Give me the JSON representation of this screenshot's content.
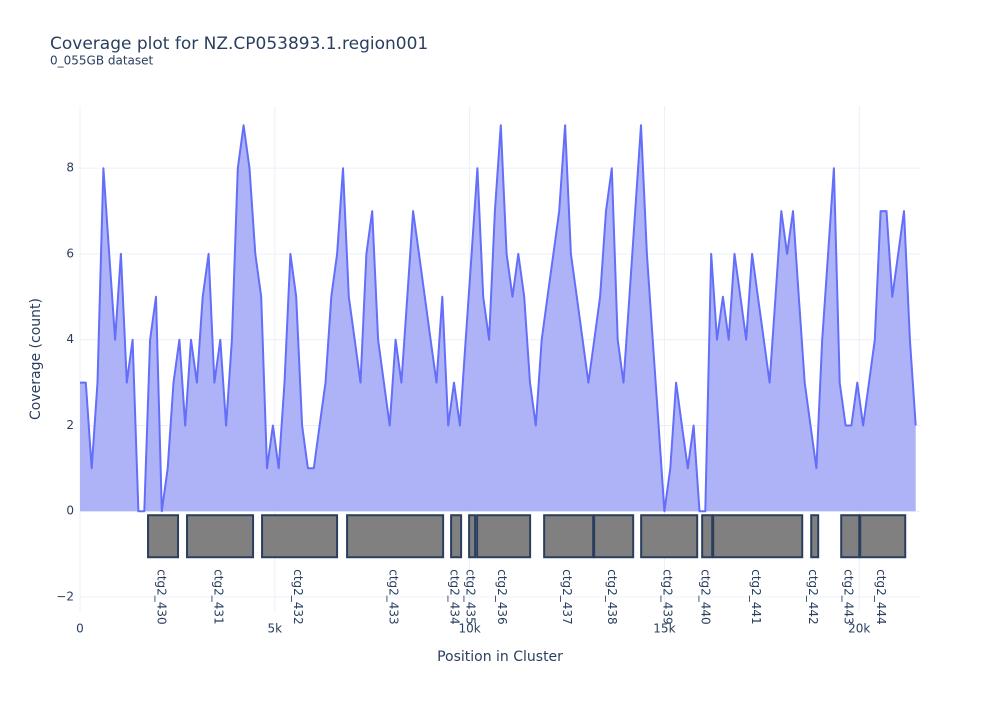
{
  "chart_data": {
    "type": "area",
    "title": "Coverage plot for NZ.CP053893.1.region001",
    "subtitle": "0_055GB dataset",
    "x_label": "Position in Cluster",
    "y_label": "Coverage (count)",
    "x": [
      0,
      150,
      300,
      450,
      600,
      750,
      900,
      1050,
      1200,
      1350,
      1500,
      1650,
      1800,
      1950,
      2100,
      2250,
      2400,
      2550,
      2700,
      2850,
      3000,
      3150,
      3300,
      3450,
      3600,
      3750,
      3900,
      4050,
      4200,
      4350,
      4500,
      4650,
      4800,
      4950,
      5100,
      5250,
      5400,
      5550,
      5700,
      5850,
      6000,
      6150,
      6300,
      6450,
      6600,
      6750,
      6900,
      7050,
      7200,
      7350,
      7500,
      7650,
      7800,
      7950,
      8100,
      8250,
      8400,
      8550,
      8700,
      8850,
      9000,
      9150,
      9300,
      9450,
      9600,
      9750,
      9900,
      10050,
      10200,
      10350,
      10500,
      10650,
      10800,
      10950,
      11100,
      11250,
      11400,
      11550,
      11700,
      11850,
      12000,
      12150,
      12300,
      12450,
      12600,
      12750,
      12900,
      13050,
      13200,
      13350,
      13500,
      13650,
      13800,
      13950,
      14100,
      14250,
      14400,
      14550,
      14700,
      14850,
      15000,
      15150,
      15300,
      15450,
      15600,
      15750,
      15900,
      16050,
      16200,
      16350,
      16500,
      16650,
      16800,
      16950,
      17100,
      17250,
      17400,
      17550,
      17700,
      17850,
      18000,
      18150,
      18300,
      18450,
      18600,
      18750,
      18900,
      19050,
      19200,
      19350,
      19500,
      19650,
      19800,
      19950,
      20100,
      20250,
      20400,
      20550,
      20700,
      20850,
      21000,
      21150,
      21300,
      21450
    ],
    "series": [
      {
        "name": "Coverage",
        "color": "#636efa",
        "fill": "#aeb3f8",
        "values": [
          3,
          3,
          1,
          3,
          8,
          6,
          4,
          6,
          3,
          4,
          0,
          0,
          4,
          5,
          0,
          1,
          3,
          4,
          2,
          4,
          3,
          5,
          6,
          3,
          4,
          2,
          4,
          8,
          9,
          8,
          6,
          5,
          1,
          2,
          1,
          3,
          6,
          5,
          2,
          1,
          1,
          2,
          3,
          5,
          6,
          8,
          5,
          4,
          3,
          6,
          7,
          4,
          3,
          2,
          4,
          3,
          5,
          7,
          6,
          5,
          4,
          3,
          5,
          2,
          3,
          2,
          4,
          6,
          8,
          5,
          4,
          7,
          9,
          6,
          5,
          6,
          5,
          3,
          2,
          4,
          5,
          6,
          7,
          9,
          6,
          5,
          4,
          3,
          4,
          5,
          7,
          8,
          4,
          3,
          5,
          7,
          9,
          6,
          4,
          2,
          0,
          1,
          3,
          2,
          1,
          2,
          0,
          0,
          6,
          4,
          5,
          4,
          6,
          5,
          4,
          6,
          5,
          4,
          3,
          5,
          7,
          6,
          7,
          5,
          3,
          2,
          1,
          4,
          6,
          8,
          3,
          2,
          2,
          3,
          2,
          3,
          4,
          7,
          7,
          5,
          6,
          7,
          4,
          2
        ]
      }
    ],
    "genes": [
      {
        "name": "ctg2_430",
        "start": 1746,
        "end": 2516
      },
      {
        "name": "ctg2_431",
        "start": 2747,
        "end": 4442
      },
      {
        "name": "ctg2_432",
        "start": 4673,
        "end": 6598
      },
      {
        "name": "ctg2_433",
        "start": 6855,
        "end": 9320
      },
      {
        "name": "ctg2_434",
        "start": 9525,
        "end": 9782
      },
      {
        "name": "ctg2_435",
        "start": 9987,
        "end": 10141
      },
      {
        "name": "ctg2_436",
        "start": 10192,
        "end": 11553
      },
      {
        "name": "ctg2_437",
        "start": 11913,
        "end": 13171
      },
      {
        "name": "ctg2_438",
        "start": 13197,
        "end": 14198
      },
      {
        "name": "ctg2_439",
        "start": 14403,
        "end": 15841
      },
      {
        "name": "ctg2_440",
        "start": 15969,
        "end": 16226
      },
      {
        "name": "ctg2_441",
        "start": 16252,
        "end": 18537
      },
      {
        "name": "ctg2_442",
        "start": 18768,
        "end": 18947
      },
      {
        "name": "ctg2_443",
        "start": 19538,
        "end": 20000
      },
      {
        "name": "ctg2_444",
        "start": 20026,
        "end": 21181
      }
    ],
    "gene_color": "#808080",
    "gene_border": "#2a3f5f",
    "xlim": [
      0,
      21560
    ],
    "ylim": [
      -2.35,
      9.45
    ],
    "xticks": [
      0,
      {
        "value": 5000,
        "label": "5k"
      },
      {
        "value": 10000,
        "label": "10k"
      },
      {
        "value": 15000,
        "label": "15k"
      },
      {
        "value": 20000,
        "label": "20k"
      }
    ],
    "yticks": [
      {
        "value": -2,
        "label": "−2"
      },
      0,
      2,
      4,
      6,
      8
    ],
    "grid": true
  }
}
